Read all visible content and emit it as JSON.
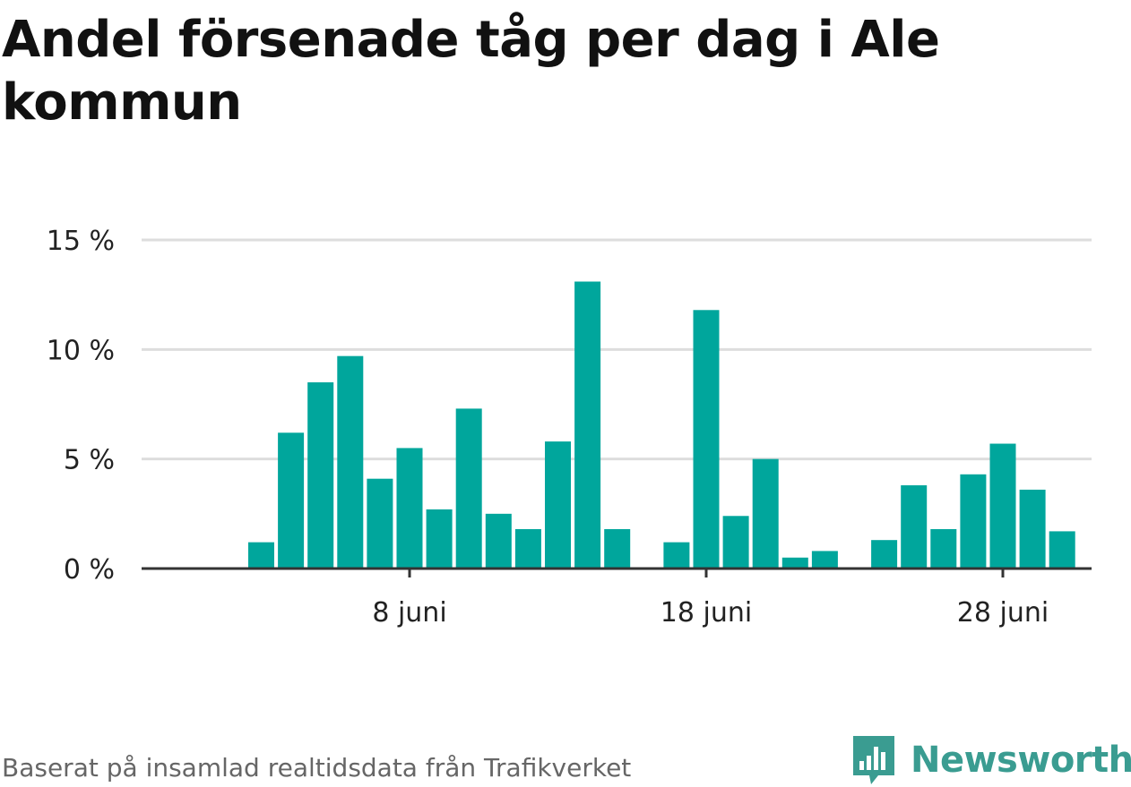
{
  "title": "Andel försenade tåg per dag i Ale kommun",
  "footer": {
    "source_note": "Baserat på insamlad realtidsdata från Trafikverket",
    "brand_name": "Newsworthy"
  },
  "colors": {
    "bar": "#00a69c",
    "grid": "#dddddd",
    "axis": "#333333",
    "brand": "#3a9c91"
  },
  "chart_data": {
    "type": "bar",
    "title": "Andel försenade tåg per dag i Ale kommun",
    "xlabel": "",
    "ylabel": "",
    "y_unit": "%",
    "ylim": [
      0,
      15
    ],
    "y_ticks": [
      {
        "value": 0,
        "label": "0 %"
      },
      {
        "value": 5,
        "label": "5 %"
      },
      {
        "value": 10,
        "label": "10 %"
      },
      {
        "value": 15,
        "label": "15 %"
      }
    ],
    "x_ticks": [
      {
        "day": 8,
        "label": "8 juni"
      },
      {
        "day": 18,
        "label": "18 juni"
      },
      {
        "day": 28,
        "label": "28 juni"
      }
    ],
    "x_range_days": [
      0,
      31
    ],
    "grid": true,
    "legend": "none",
    "days": [
      {
        "day": 1,
        "value": null
      },
      {
        "day": 2,
        "value": null
      },
      {
        "day": 3,
        "value": 1.2
      },
      {
        "day": 4,
        "value": 6.2
      },
      {
        "day": 5,
        "value": 8.5
      },
      {
        "day": 6,
        "value": 9.7
      },
      {
        "day": 7,
        "value": 4.1
      },
      {
        "day": 8,
        "value": 5.5
      },
      {
        "day": 9,
        "value": 2.7
      },
      {
        "day": 10,
        "value": 7.3
      },
      {
        "day": 11,
        "value": 2.5
      },
      {
        "day": 12,
        "value": 1.8
      },
      {
        "day": 13,
        "value": 5.8
      },
      {
        "day": 14,
        "value": 13.1
      },
      {
        "day": 15,
        "value": 1.8
      },
      {
        "day": 16,
        "value": null
      },
      {
        "day": 17,
        "value": 1.2
      },
      {
        "day": 18,
        "value": 11.8
      },
      {
        "day": 19,
        "value": 2.4
      },
      {
        "day": 20,
        "value": 5.0
      },
      {
        "day": 21,
        "value": 0.5
      },
      {
        "day": 22,
        "value": 0.8
      },
      {
        "day": 23,
        "value": null
      },
      {
        "day": 24,
        "value": 1.3
      },
      {
        "day": 25,
        "value": 3.8
      },
      {
        "day": 26,
        "value": 1.8
      },
      {
        "day": 27,
        "value": 4.3
      },
      {
        "day": 28,
        "value": 5.7
      },
      {
        "day": 29,
        "value": 3.6
      },
      {
        "day": 30,
        "value": 1.7
      }
    ]
  }
}
